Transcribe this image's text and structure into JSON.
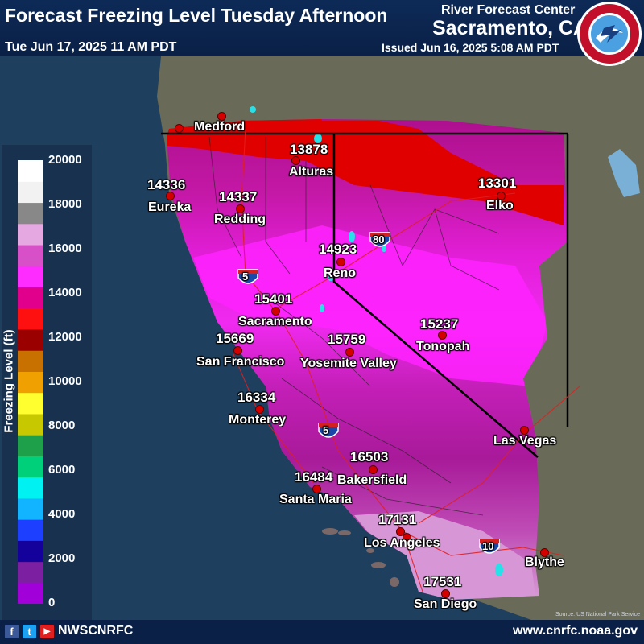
{
  "header": {
    "title": "Forecast Freezing Level Tuesday Afternoon",
    "valid_time": "Tue Jun 17, 2025 11 AM PDT",
    "center_name": "River Forecast Center",
    "office": "Sacramento, CA",
    "issued": "Issued Jun 16, 2025 5:08 AM PDT",
    "badge_text": "NATIONAL WEATHER SERVICE"
  },
  "legend": {
    "title": "Freezing Level (ft)",
    "ticks": [
      "20000",
      "18000",
      "16000",
      "14000",
      "12000",
      "10000",
      "8000",
      "6000",
      "4000",
      "2000",
      "0"
    ],
    "colors": [
      "#a200d8",
      "#7c1fa0",
      "#14009a",
      "#1d3fff",
      "#12b4ff",
      "#00f1f1",
      "#00d07a",
      "#1ea04a",
      "#c8c800",
      "#ffff30",
      "#f0a000",
      "#c87000",
      "#9a0000",
      "#ff1010",
      "#e0008c",
      "#ff2cff",
      "#d850c8",
      "#e6a8e0",
      "#888888",
      "#f2f2f2",
      "#ffffff"
    ]
  },
  "cities": [
    {
      "name": "Medford",
      "value": ""
    },
    {
      "name": "Eureka",
      "value": "14336"
    },
    {
      "name": "Redding",
      "value": "14337"
    },
    {
      "name": "Alturas",
      "value": "13878"
    },
    {
      "name": "Elko",
      "value": "13301"
    },
    {
      "name": "Reno",
      "value": "14923"
    },
    {
      "name": "Sacramento",
      "value": "15401"
    },
    {
      "name": "San Francisco",
      "value": "15669"
    },
    {
      "name": "Yosemite Valley",
      "value": "15759"
    },
    {
      "name": "Tonopah",
      "value": "15237"
    },
    {
      "name": "Monterey",
      "value": "16334"
    },
    {
      "name": "Las Vegas",
      "value": ""
    },
    {
      "name": "Bakersfield",
      "value": "16503"
    },
    {
      "name": "Santa Maria",
      "value": "16484"
    },
    {
      "name": "Los Angeles",
      "value": "17131"
    },
    {
      "name": "Blythe",
      "value": ""
    },
    {
      "name": "San Diego",
      "value": "17531"
    }
  ],
  "highways": [
    "5",
    "80",
    "5",
    "10"
  ],
  "credit": "Source: US National Park Service",
  "footer": {
    "handle": "NWSCNRFC",
    "website": "www.cnrfc.noaa.gov",
    "social": [
      "f",
      "t",
      "▶"
    ]
  }
}
